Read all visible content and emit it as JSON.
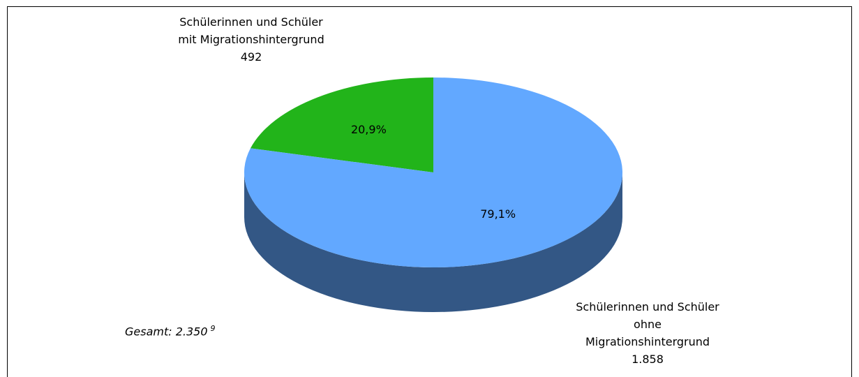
{
  "chart_data": {
    "type": "pie",
    "categories": [
      "Schülerinnen und Schüler mit Migrationshintergrund",
      "Schülerinnen und Schüler ohne Migrationshintergrund"
    ],
    "counts": [
      492,
      {
        "value": 1858,
        "label": "1.858"
      }
    ],
    "values": [
      20.9,
      79.1
    ],
    "value_labels": [
      "20,9%",
      "79,1%"
    ],
    "colors": [
      "#22b41a",
      "#62a8ff"
    ],
    "annotation": {
      "text": "Gesamt: 2.350",
      "footnote": "9"
    }
  }
}
